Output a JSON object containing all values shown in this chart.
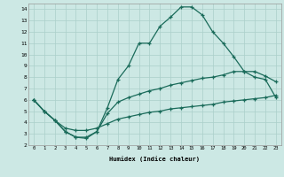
{
  "xlabel": "Humidex (Indice chaleur)",
  "bg_color": "#cce8e4",
  "line_color": "#1a6b5a",
  "grid_color": "#aacfca",
  "xlim": [
    -0.5,
    23.5
  ],
  "ylim": [
    2,
    14.5
  ],
  "xticks": [
    0,
    1,
    2,
    3,
    4,
    5,
    6,
    7,
    8,
    9,
    10,
    11,
    12,
    13,
    14,
    15,
    16,
    17,
    18,
    19,
    20,
    21,
    22,
    23
  ],
  "yticks": [
    2,
    3,
    4,
    5,
    6,
    7,
    8,
    9,
    10,
    11,
    12,
    13,
    14
  ],
  "curve_top_x": [
    0,
    1,
    2,
    3,
    4,
    5,
    6,
    7,
    8,
    9,
    10,
    11,
    12,
    13,
    14,
    15,
    16,
    17,
    18,
    19,
    20,
    21,
    22,
    23
  ],
  "curve_top_y": [
    6.0,
    5.0,
    4.2,
    3.2,
    2.7,
    2.6,
    3.2,
    5.3,
    7.8,
    9.0,
    11.0,
    11.0,
    12.5,
    13.3,
    14.2,
    14.2,
    13.5,
    12.0,
    11.0,
    9.8,
    8.5,
    8.0,
    7.8,
    6.2
  ],
  "curve_mid_x": [
    0,
    1,
    2,
    3,
    4,
    5,
    6,
    7,
    8,
    9,
    10,
    11,
    12,
    13,
    14,
    15,
    16,
    17,
    18,
    19,
    20,
    21,
    22,
    23
  ],
  "curve_mid_y": [
    6.0,
    5.0,
    4.2,
    3.2,
    2.7,
    2.7,
    3.2,
    4.8,
    5.8,
    6.2,
    6.5,
    6.8,
    7.0,
    7.3,
    7.5,
    7.7,
    7.9,
    8.0,
    8.2,
    8.5,
    8.5,
    8.5,
    8.1,
    7.6
  ],
  "curve_bot_x": [
    0,
    1,
    2,
    3,
    4,
    5,
    6,
    7,
    8,
    9,
    10,
    11,
    12,
    13,
    14,
    15,
    16,
    17,
    18,
    19,
    20,
    21,
    22,
    23
  ],
  "curve_bot_y": [
    6.0,
    5.0,
    4.2,
    3.5,
    3.3,
    3.3,
    3.5,
    3.9,
    4.3,
    4.5,
    4.7,
    4.9,
    5.0,
    5.2,
    5.3,
    5.4,
    5.5,
    5.6,
    5.8,
    5.9,
    6.0,
    6.1,
    6.2,
    6.4
  ]
}
